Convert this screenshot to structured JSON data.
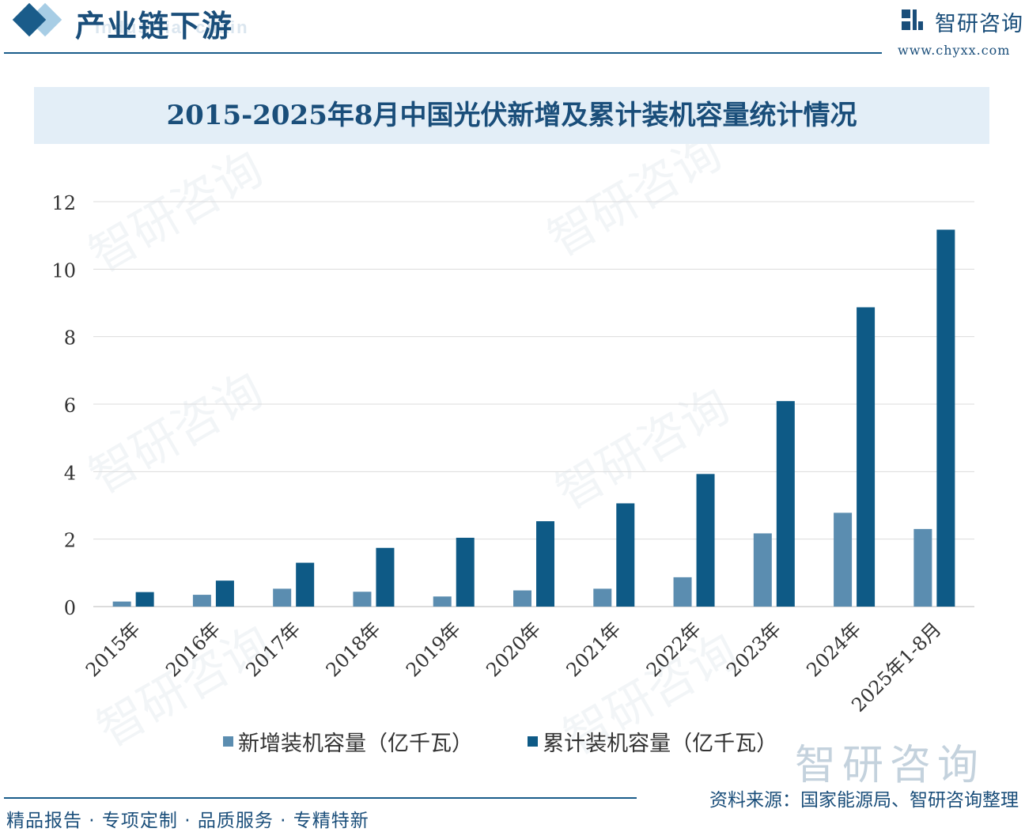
{
  "header": {
    "section_title": "产业链下游",
    "section_subtitle": "Industrial chain",
    "brand_name": "智研咨询",
    "brand_url": "www.chyxx.com"
  },
  "colors": {
    "primary": "#1a5c8a",
    "new_series": "#5b8db0",
    "cumulative_series": "#0e5a86",
    "title_band": "#e3eef7",
    "text": "#1a4e7a"
  },
  "footer": {
    "tagline": "精品报告 · 专项定制 · 品质服务 · 专精特新",
    "source": "资料来源：国家能源局、智研咨询整理"
  },
  "watermark_text": "智研咨询",
  "chart_data": {
    "type": "bar",
    "title": "2015-2025年8月中国光伏新增及累计装机容量统计情况",
    "categories": [
      "2015年",
      "2016年",
      "2017年",
      "2018年",
      "2019年",
      "2020年",
      "2021年",
      "2022年",
      "2023年",
      "2024年",
      "2025年1-8月"
    ],
    "series": [
      {
        "name": "新增装机容量（亿千瓦）",
        "color": "#5b8db0",
        "values": [
          0.15,
          0.35,
          0.53,
          0.44,
          0.3,
          0.48,
          0.53,
          0.87,
          2.17,
          2.78,
          2.3
        ]
      },
      {
        "name": "累计装机容量（亿千瓦）",
        "color": "#0e5a86",
        "values": [
          0.43,
          0.77,
          1.3,
          1.74,
          2.04,
          2.53,
          3.06,
          3.93,
          6.09,
          8.87,
          11.17
        ]
      }
    ],
    "yticks": [
      0,
      2,
      4,
      6,
      8,
      10,
      12
    ],
    "ylim": [
      0,
      12
    ],
    "grid": true,
    "legend_position": "bottom"
  }
}
